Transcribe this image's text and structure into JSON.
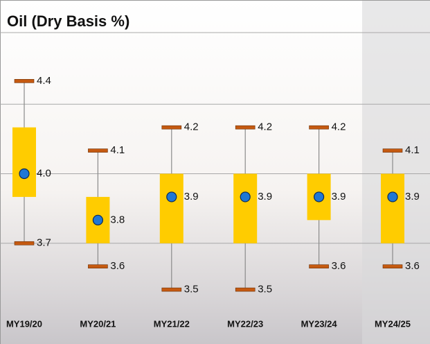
{
  "chart_data": {
    "type": "box",
    "title": "Oil (Dry Basis %)",
    "categories": [
      "MY19/20",
      "MY20/21",
      "MY21/22",
      "MY22/23",
      "MY23/24",
      "MY24/25"
    ],
    "max": [
      4.4,
      4.1,
      4.2,
      4.2,
      4.2,
      4.1
    ],
    "min": [
      3.7,
      3.6,
      3.5,
      3.5,
      3.6,
      3.6
    ],
    "box_high": [
      4.2,
      3.9,
      4.0,
      4.0,
      4.0,
      4.0
    ],
    "box_low": [
      3.9,
      3.7,
      3.7,
      3.7,
      3.8,
      3.7
    ],
    "mean": [
      4.0,
      3.8,
      3.9,
      3.9,
      3.9,
      3.9
    ],
    "mean_value_labels": [
      "4.0",
      "3.8",
      "3.9",
      "3.9",
      "3.9",
      "3.9"
    ],
    "box_color": "#ffcc00",
    "cap_color": "#c55a11",
    "mean_color": "#1f77d4",
    "ylim": [
      3.4,
      4.6
    ],
    "yticks": [
      3.7,
      4.0,
      4.3
    ],
    "grid": true
  }
}
